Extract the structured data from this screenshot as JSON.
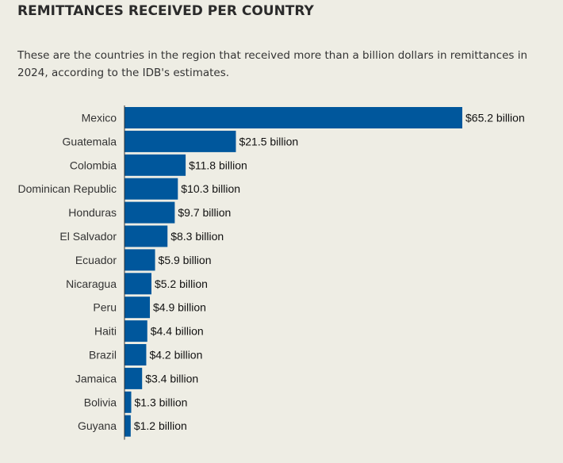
{
  "header": {
    "title": "REMITTANCES RECEIVED PER COUNTRY",
    "subtitle": "These are the countries in the region that received more than a billion dollars in remittances in 2024, according to the IDB's estimates."
  },
  "colors": {
    "bar": "#00579c",
    "background": "#eeede4",
    "axis": "#333333"
  },
  "chart_data": {
    "type": "bar",
    "orientation": "horizontal",
    "title": "REMITTANCES RECEIVED PER COUNTRY",
    "subtitle": "These are the countries in the region that received more than a billion dollars in remittances in 2024, according to the IDB's estimates.",
    "xlabel": "",
    "ylabel": "",
    "grid": false,
    "legend": "none",
    "xlim": [
      0,
      65.2
    ],
    "unit": "billion USD",
    "categories": [
      "Mexico",
      "Guatemala",
      "Colombia",
      "Dominican Republic",
      "Honduras",
      "El Salvador",
      "Ecuador",
      "Nicaragua",
      "Peru",
      "Haiti",
      "Brazil",
      "Jamaica",
      "Bolivia",
      "Guyana"
    ],
    "values": [
      65.2,
      21.5,
      11.8,
      10.3,
      9.7,
      8.3,
      5.9,
      5.2,
      4.9,
      4.4,
      4.2,
      3.4,
      1.3,
      1.2
    ],
    "labels": [
      "$65.2 billion",
      "$21.5 billion",
      "$11.8 billion",
      "$10.3 billion",
      "$9.7 billion",
      "$8.3 billion",
      "$5.9 billion",
      "$5.2 billion",
      "$4.9 billion",
      "$4.4 billion",
      "$4.2 billion",
      "$3.4 billion",
      "$1.3 billion",
      "$1.2 billion"
    ]
  }
}
